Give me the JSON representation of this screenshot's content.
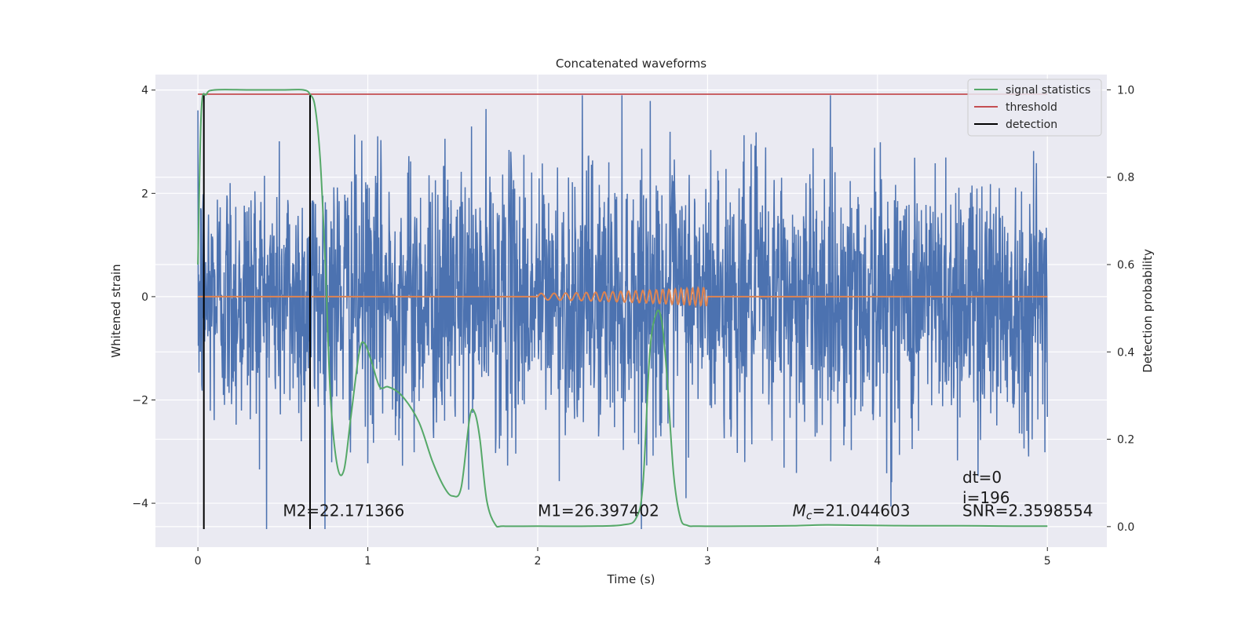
{
  "chart_data": {
    "type": "line",
    "title": "Concatenated waveforms",
    "xlabel": "Time (s)",
    "ylabel": "Whitened strain",
    "y2label": "Detection probability",
    "xlim": [
      -0.25,
      5.35
    ],
    "ylim": [
      -4.85,
      4.3
    ],
    "y2lim": [
      -0.047,
      1.035
    ],
    "x_ticks": [
      0,
      1,
      2,
      3,
      4,
      5
    ],
    "x_tick_labels": [
      "0",
      "1",
      "2",
      "3",
      "4",
      "5"
    ],
    "y_ticks": [
      4,
      2,
      0,
      -2,
      -4
    ],
    "y_tick_labels": [
      "4",
      "2",
      "0",
      "−2",
      "−4"
    ],
    "y2_ticks": [
      1.0,
      0.8,
      0.6,
      0.4,
      0.2,
      0.0
    ],
    "y2_tick_labels": [
      "1.0",
      "0.8",
      "0.6",
      "0.4",
      "0.2",
      "0.0"
    ],
    "grid": true,
    "legend_position": "top-right",
    "colors": {
      "noise": "#4c72b0",
      "template": "#dd8452",
      "signal_statistics": "#55a868",
      "threshold": "#c44e52",
      "detection": "#000000",
      "background": "#eaeaf2",
      "grid": "#ffffff"
    },
    "series": [
      {
        "name": "signal statistics",
        "axis": "right",
        "x": [
          0.0,
          0.02,
          0.05,
          0.1,
          0.3,
          0.5,
          0.62,
          0.66,
          0.69,
          0.72,
          0.75,
          0.78,
          0.82,
          0.86,
          0.9,
          0.95,
          0.98,
          1.02,
          1.07,
          1.12,
          1.2,
          1.3,
          1.38,
          1.45,
          1.5,
          1.55,
          1.6,
          1.63,
          1.66,
          1.7,
          1.75,
          1.8,
          2.0,
          2.3,
          2.5,
          2.58,
          2.62,
          2.66,
          2.7,
          2.73,
          2.76,
          2.8,
          2.84,
          2.88,
          2.95,
          3.2,
          3.5,
          3.7,
          3.9,
          4.2,
          4.5,
          4.8,
          5.0
        ],
        "y": [
          0.6,
          0.95,
          0.99,
          1.0,
          1.0,
          1.0,
          1.0,
          0.99,
          0.96,
          0.84,
          0.6,
          0.3,
          0.14,
          0.13,
          0.25,
          0.4,
          0.42,
          0.38,
          0.32,
          0.32,
          0.3,
          0.24,
          0.15,
          0.09,
          0.07,
          0.09,
          0.25,
          0.26,
          0.2,
          0.06,
          0.005,
          0.001,
          0.001,
          0.001,
          0.004,
          0.02,
          0.1,
          0.4,
          0.49,
          0.47,
          0.35,
          0.12,
          0.02,
          0.003,
          0.001,
          0.001,
          0.002,
          0.004,
          0.003,
          0.002,
          0.002,
          0.001,
          0.001
        ]
      },
      {
        "name": "threshold",
        "axis": "right",
        "x": [
          0,
          5
        ],
        "y": [
          0.99,
          0.99
        ]
      },
      {
        "name": "detection",
        "axis": "left",
        "x_positions": [
          0.035,
          0.66
        ],
        "y_range": [
          -4.5,
          3.9
        ]
      }
    ],
    "noise_trace": {
      "axis": "left",
      "x_range": [
        0,
        5
      ],
      "samples": 2400,
      "typical_amplitude": 1.3,
      "peak": 3.9
    },
    "template_trace": {
      "axis": "left",
      "x_range": [
        0,
        5
      ],
      "chirp_start": 2.0,
      "chirp_end": 3.0,
      "max_amplitude": 0.18
    },
    "annotations": [
      {
        "text": "M2=22.171366",
        "x": 0.5,
        "y": -4.25
      },
      {
        "text": "M1=26.397402",
        "x": 2.0,
        "y": -4.25
      },
      {
        "prefix": "M",
        "subscript": "c",
        "suffix": "=21.044603",
        "x": 3.5,
        "y": -4.25
      },
      {
        "text": "dt=0",
        "x": 4.5,
        "y": -3.6
      },
      {
        "text": "i=196",
        "x": 4.5,
        "y": -4.0
      },
      {
        "text": "SNR=2.3598554",
        "x": 4.5,
        "y": -4.25
      }
    ]
  }
}
